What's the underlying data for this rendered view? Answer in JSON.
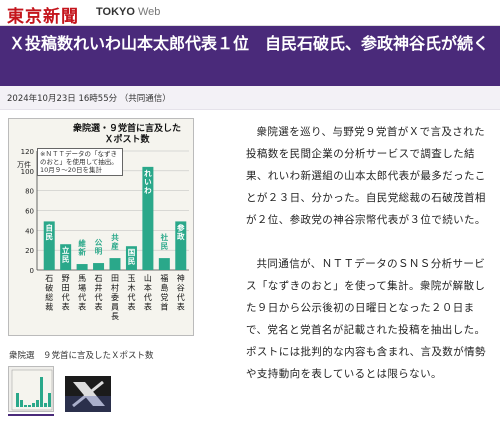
{
  "site": {
    "logo_jp": "東京新聞",
    "logo_en": "TOKYO",
    "logo_en_suffix": "Web"
  },
  "headline": "Ｘ投稿数れいわ山本太郎代表１位　自民石破氏、参政神谷氏が続く",
  "meta": "2024年10月23日 16時55分 （共同通信）",
  "figure": {
    "caption": "衆院選　９党首に言及したＸポスト数",
    "thumbnail_1_icon": "chart-thumbnail-icon",
    "thumbnail_2_icon": "x-logo-thumbnail-icon"
  },
  "chart_data": {
    "type": "bar",
    "title": "衆院選・９党首に言及した\nＸポスト数",
    "note": "※ＮＴＴデータの「なずきのおと」を使用して抽出。10月９〜20日を集計",
    "ylabel": "万件",
    "ylim": [
      0,
      120
    ],
    "yticks": [
      0,
      20,
      40,
      60,
      80,
      100,
      120
    ],
    "categories": [
      "石破総裁",
      "野田代表",
      "馬場代表",
      "石井代表",
      "田村委員長",
      "玉木代表",
      "山本代表",
      "福島党首",
      "神谷代表"
    ],
    "parties": [
      "自民",
      "立民",
      "維新",
      "公明",
      "共産",
      "国民",
      "れいわ",
      "社民",
      "参政"
    ],
    "values": [
      49,
      26,
      6,
      7,
      12,
      24,
      104,
      12,
      49
    ],
    "bar_color": "#2aa88a"
  },
  "article": {
    "paragraphs": [
      "衆院選を巡り、与野党９党首がＸで言及された投稿数を民間企業の分析サービスで調査した結果、れいわ新選組の山本太郎代表が最多だったことが２３日、分かった。自民党総裁の石破茂首相が２位、参政党の神谷宗幣代表が３位で続いた。",
      "共同通信が、ＮＴＴデータのＳＮＳ分析サービス「なずきのおと」を使って集計。衆院が解散した９日から公示後初の日曜日となった２０日まで、党名と党首名が記載された投稿を抽出した。ポストには批判的な内容も含まれ、言及数が情勢や支持動向を表しているとは限らない。"
    ]
  }
}
